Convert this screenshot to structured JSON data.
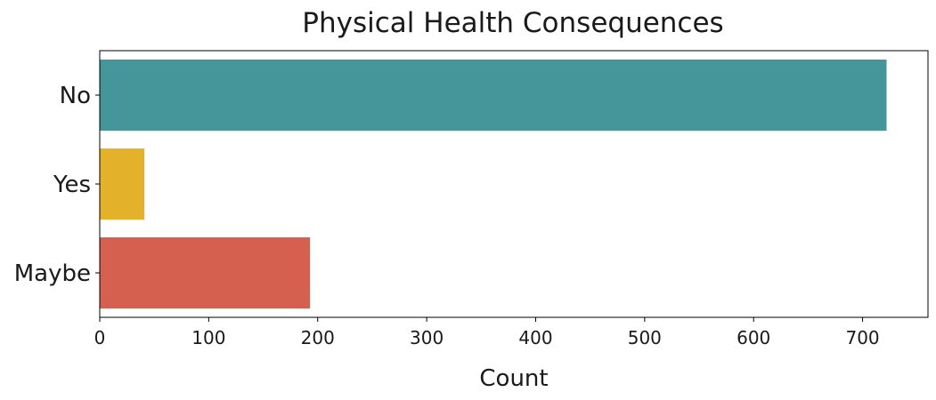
{
  "chart_data": {
    "type": "bar",
    "orientation": "horizontal",
    "title": "Physical Health Consequences",
    "xlabel": "Count",
    "ylabel": "",
    "categories": [
      "No",
      "Yes",
      "Maybe"
    ],
    "values": [
      722,
      41,
      193
    ],
    "colors": [
      "#45969a",
      "#e3b12a",
      "#d6604f"
    ],
    "xlim": [
      0,
      760
    ],
    "xticks": [
      0,
      100,
      200,
      300,
      400,
      500,
      600,
      700
    ],
    "grid": false,
    "legend": "none"
  }
}
